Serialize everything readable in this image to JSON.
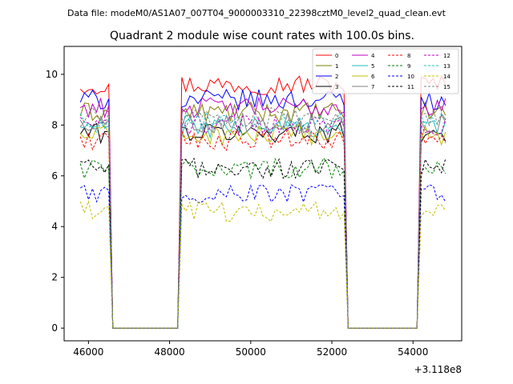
{
  "figure": {
    "suptitle": "Data file: modeM0/AS1A07_007T04_9000003310_22398cztM0_level2_quad_clean.evt",
    "title": "Quadrant 2 module wise count rates with 100.0s bins.",
    "offset_label": "+3.118e8"
  },
  "chart_data": {
    "type": "line",
    "x_offset": 311800000,
    "xlim": [
      45400,
      55200
    ],
    "ylim": [
      -0.5,
      11.1
    ],
    "xticks": [
      46000,
      48000,
      50000,
      52000,
      54000
    ],
    "xtick_labels": [
      "46000",
      "48000",
      "50000",
      "52000",
      "54000"
    ],
    "yticks": [
      0,
      2,
      4,
      6,
      8,
      10
    ],
    "ytick_labels": [
      "0",
      "2",
      "4",
      "6",
      "8",
      "10"
    ],
    "grid": false,
    "legend_position": "top-right",
    "segments": [
      {
        "start": 45800,
        "end": 46500
      },
      {
        "start": 48300,
        "end": 52300
      },
      {
        "start": 54200,
        "end": 54800
      }
    ],
    "series": [
      {
        "name": "0",
        "color": "#ff0000",
        "dash": "solid",
        "level": 9.6
      },
      {
        "name": "1",
        "color": "#808000",
        "dash": "solid",
        "level": 8.5
      },
      {
        "name": "2",
        "color": "#0000ff",
        "dash": "solid",
        "level": 9.0
      },
      {
        "name": "3",
        "color": "#000000",
        "dash": "solid",
        "level": 7.7
      },
      {
        "name": "4",
        "color": "#bf00bf",
        "dash": "solid",
        "level": 8.7
      },
      {
        "name": "5",
        "color": "#1fbfbf",
        "dash": "solid",
        "level": 7.9
      },
      {
        "name": "6",
        "color": "#bfbf00",
        "dash": "solid",
        "level": 7.6
      },
      {
        "name": "7",
        "color": "#808080",
        "dash": "solid",
        "level": 8.1
      },
      {
        "name": "8",
        "color": "#ff0000",
        "dash": "dashed",
        "level": 7.4
      },
      {
        "name": "9",
        "color": "#008000",
        "dash": "dashed",
        "level": 6.3
      },
      {
        "name": "10",
        "color": "#0000ff",
        "dash": "dashed",
        "level": 5.3
      },
      {
        "name": "11",
        "color": "#000000",
        "dash": "dashed",
        "level": 6.3
      },
      {
        "name": "12",
        "color": "#bf00bf",
        "dash": "dashed",
        "level": 8.0
      },
      {
        "name": "13",
        "color": "#1fbfbf",
        "dash": "dashed",
        "level": 8.1
      },
      {
        "name": "14",
        "color": "#bfbf00",
        "dash": "dashed",
        "level": 4.6
      },
      {
        "name": "15",
        "color": "#808080",
        "dash": "dashed",
        "level": 8.3
      }
    ]
  }
}
